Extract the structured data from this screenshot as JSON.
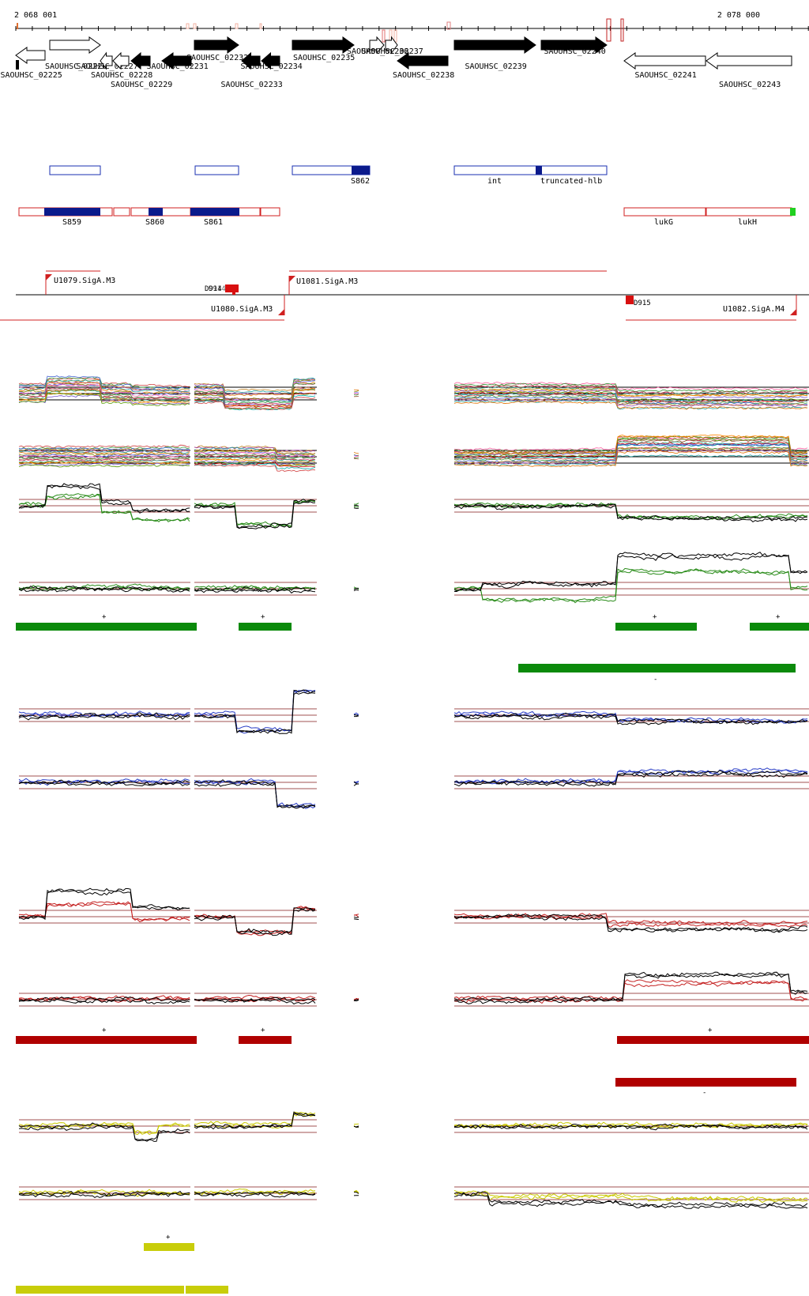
{
  "coords": {
    "start": "2 068 001",
    "end": "2 078 000"
  },
  "genes": [
    {
      "label": "SAOUHSC_02225",
      "strand": "-",
      "filled": false
    },
    {
      "label": "SAOUHSC_02226",
      "strand": "+",
      "filled": false
    },
    {
      "label": "SAOUHSC_02227",
      "strand": "-",
      "filled": false
    },
    {
      "label": "SAOUHSC_02228",
      "strand": "-",
      "filled": false
    },
    {
      "label": "SAOUHSC_02229",
      "strand": "-",
      "filled": true
    },
    {
      "label": "SAOUHSC_02231",
      "strand": "-",
      "filled": true
    },
    {
      "label": "SAOUHSC_02232",
      "strand": "+",
      "filled": true
    },
    {
      "label": "SAOUHSC_02233",
      "strand": "-",
      "filled": true
    },
    {
      "label": "SAOUHSC_02234",
      "strand": "-",
      "filled": true
    },
    {
      "label": "SAOUHSC_02235",
      "strand": "+",
      "filled": true
    },
    {
      "label": "SAOUHSC_02236",
      "strand": "+",
      "filled": false
    },
    {
      "label": "SAOUHSC_02237",
      "strand": "+",
      "filled": false
    },
    {
      "label": "SAOUHSC_02238",
      "strand": "-",
      "filled": true
    },
    {
      "label": "SAOUHSC_02239",
      "strand": "+",
      "filled": true
    },
    {
      "label": "SAOUHSC_02240",
      "strand": "+",
      "filled": true
    },
    {
      "label": "SAOUHSC_02241",
      "strand": "-",
      "filled": false
    },
    {
      "label": "SAOUHSC_02243",
      "strand": "-",
      "filled": false
    }
  ],
  "features_plus": [
    {
      "label": "",
      "marks": []
    },
    {
      "label": "",
      "marks": []
    },
    {
      "label": "S862",
      "marks": [
        0.78
      ]
    },
    {
      "label": "int",
      "marks": [
        0.55
      ]
    },
    {
      "label": "truncated-hlb",
      "marks": []
    }
  ],
  "features_minus": [
    {
      "label": "S859"
    },
    {
      "label": "S860"
    },
    {
      "label": "S861"
    },
    {
      "label": "lukG"
    },
    {
      "label": "lukH"
    }
  ],
  "transcription_units": [
    {
      "label": "U1079.SigA.M3",
      "strand": "+"
    },
    {
      "label": "U1080.SigA.M3",
      "strand": "-"
    },
    {
      "label": "U1081.SigA.M3",
      "strand": "+"
    },
    {
      "label": "U1082.SigA.M4",
      "strand": "-"
    },
    {
      "label": "D914",
      "strand": ""
    },
    {
      "label": "D915",
      "strand": ""
    }
  ],
  "expression_groups": [
    {
      "line_color": "#2a8c1a",
      "bar_color": "#0b8a0b",
      "plus_label": "+",
      "minus_label": "-"
    },
    {
      "line_color": "#2b3fc7",
      "bar_color": "#2b3fc7",
      "plus_label": "",
      "minus_label": ""
    },
    {
      "line_color": "#c42020",
      "bar_color": "#b00000",
      "plus_label": "+",
      "minus_label": "-"
    },
    {
      "line_color": "#c9c900",
      "bar_color": "#c8cd0a",
      "plus_label": "+",
      "minus_label": "-"
    }
  ]
}
